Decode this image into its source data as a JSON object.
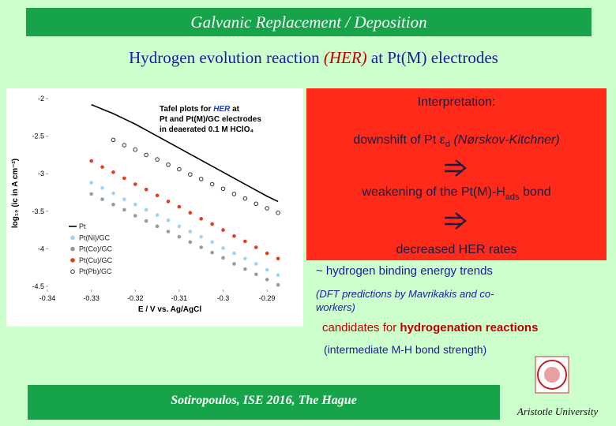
{
  "header": {
    "title": "Galvanic Replacement / Deposition"
  },
  "subtitle": {
    "lead": "Hydrogen evolution reaction",
    "emph": "(HER)",
    "tail": "at Pt(M) electrodes"
  },
  "chart": {
    "type": "scatter",
    "annotation": {
      "first": [
        "Tafel plots for",
        "HER",
        "at"
      ],
      "lines": [
        "Pt and Pt(M)/GC electrodes",
        "in deaerated 0.1 M HClO₄"
      ]
    },
    "xlabel": "E / V vs. Ag/AgCl",
    "ylabel": "log₁₀ (ic in A cm⁻²)",
    "xlim": [
      -0.34,
      -0.285
    ],
    "xticks": [
      -0.34,
      -0.33,
      -0.32,
      -0.31,
      -0.3,
      -0.29
    ],
    "ylim": [
      -4.5,
      -2
    ],
    "yticks": [
      -2,
      -2.5,
      -3,
      -3.5,
      -4,
      -4.5
    ],
    "x": [
      -0.33,
      -0.3275,
      -0.325,
      -0.3225,
      -0.32,
      -0.3175,
      -0.315,
      -0.3125,
      -0.31,
      -0.3075,
      -0.305,
      -0.3025,
      -0.3,
      -0.2975,
      -0.295,
      -0.2925,
      -0.29,
      -0.2875
    ],
    "series": [
      {
        "name": "Pt",
        "color": "#000000",
        "style": "line",
        "values": [
          -2.08,
          -2.14,
          -2.2,
          -2.27,
          -2.34,
          -2.42,
          -2.5,
          -2.58,
          -2.66,
          -2.74,
          -2.82,
          -2.9,
          -2.98,
          -3.06,
          -3.14,
          -3.22,
          -3.3,
          -3.37
        ]
      },
      {
        "name": "Pt(Ni)/GC",
        "color": "#9ed3f5",
        "style": "filled",
        "values": [
          -3.12,
          -3.19,
          -3.26,
          -3.34,
          -3.41,
          -3.48,
          -3.55,
          -3.62,
          -3.7,
          -3.77,
          -3.84,
          -3.91,
          -3.99,
          -4.06,
          -4.13,
          -4.2,
          -4.28,
          -4.35
        ]
      },
      {
        "name": "Pt(Co)/GC",
        "color": "#9a9a9a",
        "style": "filled",
        "values": [
          -3.27,
          -3.34,
          -3.41,
          -3.48,
          -3.56,
          -3.63,
          -3.7,
          -3.77,
          -3.84,
          -3.91,
          -3.98,
          -4.05,
          -4.12,
          -4.2,
          -4.27,
          -4.34,
          -4.41,
          -4.48
        ]
      },
      {
        "name": "Pt(Cu)/GC",
        "color": "#e83a1c",
        "style": "filled",
        "values": [
          -2.83,
          -2.91,
          -2.98,
          -3.06,
          -3.14,
          -3.21,
          -3.29,
          -3.37,
          -3.44,
          -3.52,
          -3.6,
          -3.67,
          -3.75,
          -3.83,
          -3.9,
          -3.98,
          -4.06,
          -4.13
        ]
      },
      {
        "name": "Pt(Pb)/GC",
        "color": "#333333",
        "style": "open",
        "values": [
          null,
          null,
          -2.55,
          -2.62,
          -2.68,
          -2.75,
          -2.81,
          -2.88,
          -2.94,
          -3.01,
          -3.07,
          -3.14,
          -3.2,
          -3.27,
          -3.33,
          -3.4,
          -3.46,
          -3.52
        ]
      }
    ]
  },
  "interpretation": {
    "heading": "Interpretation:",
    "line1": [
      "downshift of Pt ε",
      "d",
      "(Nørskov-Kitchner)"
    ],
    "line2": [
      "weakening of the Pt(M)-H",
      "ads",
      "bond"
    ],
    "line3": "decreased HER rates"
  },
  "notes": {
    "trend": "~ hydrogen binding energy trends",
    "dft": [
      "(DFT predictions by Mavrikakis and co-",
      "workers)"
    ],
    "candidates": [
      "candidates for",
      "hydrogenation reactions"
    ],
    "strength": "(intermediate M-H bond strength)"
  },
  "footer": {
    "author": "Sotiropoulos, ISE 2016, The Hague",
    "institution": "Aristotle University"
  }
}
